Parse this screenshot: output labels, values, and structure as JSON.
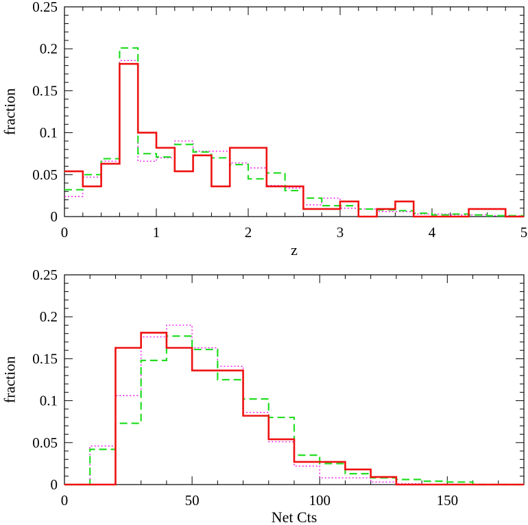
{
  "chart_data": [
    {
      "type": "histogram",
      "xlabel": "z",
      "ylabel": "fraction",
      "xlim": [
        0,
        5
      ],
      "ylim": [
        0,
        0.25
      ],
      "x_ticks": [
        "0",
        "1",
        "2",
        "3",
        "4",
        "5"
      ],
      "y_ticks": [
        "0",
        "0.05",
        "0.1",
        "0.15",
        "0.2",
        "0.25"
      ],
      "x_tick_values": [
        0,
        1,
        2,
        3,
        4,
        5
      ],
      "y_tick_values": [
        0,
        0.05,
        0.1,
        0.15,
        0.2,
        0.25
      ],
      "bin_edges": [
        0,
        0.2,
        0.4,
        0.6,
        0.8,
        1.0,
        1.2,
        1.4,
        1.6,
        1.8,
        2.0,
        2.2,
        2.4,
        2.6,
        2.8,
        3.0,
        3.2,
        3.4,
        3.6,
        3.8,
        4.0,
        4.2,
        4.4,
        4.6,
        4.8,
        5.0
      ],
      "series": [
        {
          "color": "#ee1111",
          "style": "solid",
          "values": [
            0.054,
            0.036,
            0.063,
            0.182,
            0.1,
            0.082,
            0.054,
            0.073,
            0.036,
            0.082,
            0.082,
            0.036,
            0.036,
            0.009,
            0.009,
            0.018,
            0.0,
            0.009,
            0.018,
            0.0,
            0.0,
            0.0,
            0.009,
            0.009,
            0.0
          ]
        },
        {
          "color": "#ee11ee",
          "style": "dotted",
          "values": [
            0.024,
            0.047,
            0.066,
            0.186,
            0.066,
            0.07,
            0.09,
            0.078,
            0.078,
            0.064,
            0.058,
            0.037,
            0.034,
            0.014,
            0.022,
            0.01,
            0.009,
            0.006,
            0.006,
            0.003,
            0.003,
            0.002,
            0.002,
            0.001,
            0.001
          ]
        },
        {
          "color": "#22dd22",
          "style": "dashed",
          "values": [
            0.032,
            0.05,
            0.069,
            0.201,
            0.075,
            0.071,
            0.086,
            0.077,
            0.07,
            0.062,
            0.045,
            0.052,
            0.031,
            0.022,
            0.013,
            0.013,
            0.009,
            0.008,
            0.007,
            0.004,
            0.002,
            0.003,
            0.002,
            0.001,
            0.001
          ]
        }
      ]
    },
    {
      "type": "histogram",
      "xlabel": "Net Cts",
      "ylabel": "fraction",
      "xlim": [
        0,
        180
      ],
      "ylim": [
        0,
        0.25
      ],
      "x_ticks": [
        "0",
        "50",
        "100",
        "150"
      ],
      "y_ticks": [
        "0",
        "0.05",
        "0.1",
        "0.15",
        "0.2",
        "0.25"
      ],
      "x_tick_values": [
        0,
        50,
        100,
        150
      ],
      "y_tick_values": [
        0,
        0.05,
        0.1,
        0.15,
        0.2,
        0.25
      ],
      "bin_edges": [
        0,
        10,
        20,
        30,
        40,
        50,
        60,
        70,
        80,
        90,
        100,
        110,
        120,
        130,
        140,
        150,
        160,
        170,
        180
      ],
      "series": [
        {
          "color": "#ee1111",
          "style": "solid",
          "values": [
            0.0,
            0.0,
            0.163,
            0.181,
            0.163,
            0.136,
            0.136,
            0.082,
            0.054,
            0.027,
            0.027,
            0.018,
            0.009,
            0.0,
            0.0,
            0.0,
            0.0,
            0.0
          ]
        },
        {
          "color": "#ee11ee",
          "style": "dotted",
          "values": [
            0.0,
            0.046,
            0.106,
            0.176,
            0.19,
            0.163,
            0.141,
            0.086,
            0.051,
            0.022,
            0.008,
            0.008,
            0.003,
            0.001,
            0.0,
            0.0,
            0.0,
            0.0
          ]
        },
        {
          "color": "#22dd22",
          "style": "dashed",
          "values": [
            0.0,
            0.042,
            0.073,
            0.148,
            0.177,
            0.161,
            0.125,
            0.102,
            0.08,
            0.035,
            0.025,
            0.013,
            0.008,
            0.006,
            0.004,
            0.003,
            0.0,
            0.0
          ]
        }
      ]
    }
  ]
}
